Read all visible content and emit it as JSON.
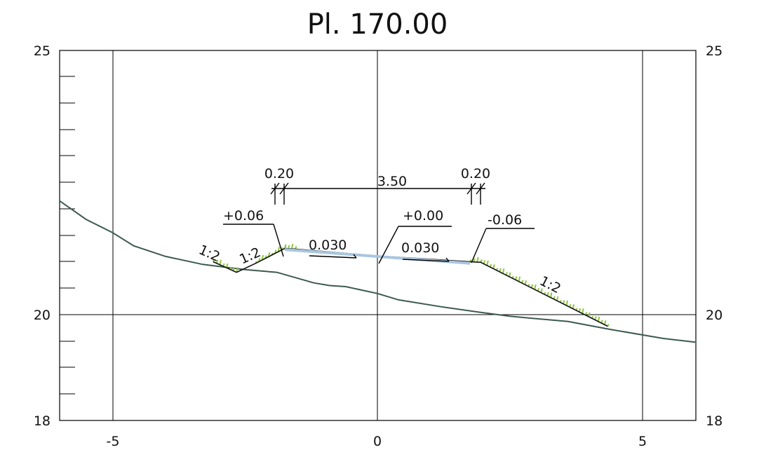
{
  "title": "Pl. 170.00",
  "y_axis": {
    "left_labels": [
      "25",
      "20",
      "18"
    ],
    "right_labels": [
      "25",
      "20",
      "18"
    ],
    "range": [
      18,
      25
    ]
  },
  "x_axis": {
    "labels": [
      "-5",
      "0",
      "5"
    ],
    "range": [
      -6,
      6
    ]
  },
  "dimensions": {
    "left_shoulder": "0.20",
    "carriageway": "3.50",
    "right_shoulder": "0.20"
  },
  "elevations": {
    "left_edge": "+0.06",
    "axis": "+0.00",
    "right_edge": "-0.06"
  },
  "slopes": {
    "left_lane": "0.030",
    "right_lane": "0.030"
  },
  "embankment_ratios": {
    "left_outer": "1:2",
    "left_inner": "1:2",
    "right": "1:2"
  },
  "colors": {
    "ground": "#3d5a4f",
    "pavement": "#a9c6e0",
    "grass": "#8dc63f"
  },
  "chart_data": {
    "type": "diagram",
    "ground_profile": [
      [
        -6.0,
        22.15
      ],
      [
        -5.5,
        21.8
      ],
      [
        -5.0,
        21.55
      ],
      [
        -4.6,
        21.3
      ],
      [
        -4.0,
        21.1
      ],
      [
        -3.3,
        20.95
      ],
      [
        -2.5,
        20.85
      ],
      [
        -1.9,
        20.8
      ],
      [
        -1.2,
        20.6
      ],
      [
        -0.9,
        20.55
      ],
      [
        -0.6,
        20.53
      ],
      [
        0.0,
        20.4
      ],
      [
        0.4,
        20.28
      ],
      [
        1.2,
        20.15
      ],
      [
        1.9,
        20.05
      ],
      [
        2.5,
        19.97
      ],
      [
        3.6,
        19.87
      ],
      [
        4.4,
        19.72
      ],
      [
        5.4,
        19.55
      ],
      [
        6.0,
        19.48
      ]
    ],
    "design_line": [
      [
        -3.1,
        21.0
      ],
      [
        -2.66,
        20.8
      ],
      [
        -2.3,
        20.97
      ],
      [
        -1.75,
        21.25
      ],
      [
        -1.55,
        21.24
      ],
      [
        0.0,
        21.11
      ],
      [
        1.75,
        21.0
      ],
      [
        1.95,
        20.99
      ],
      [
        4.35,
        19.78
      ]
    ],
    "pavement": [
      [
        -1.75,
        21.23
      ],
      [
        1.75,
        20.97
      ]
    ]
  }
}
